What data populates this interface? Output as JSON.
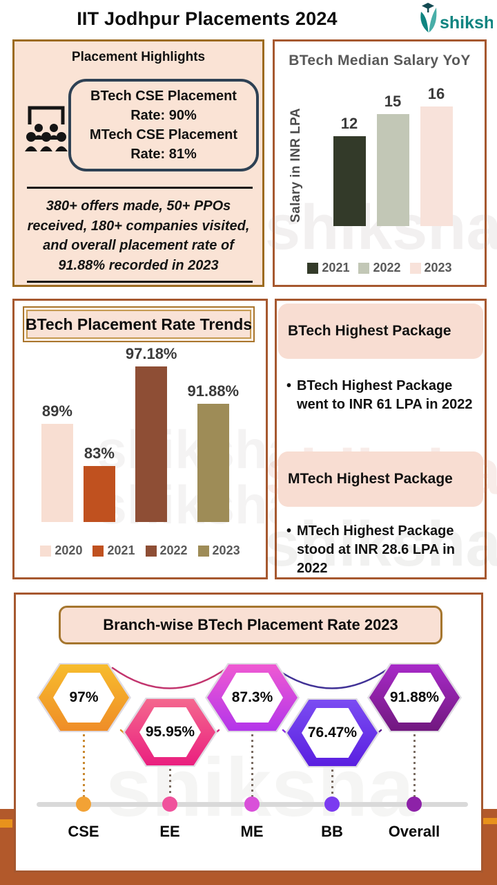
{
  "header": {
    "title": "IIT Jodhpur Placements 2024",
    "brand": "shiksha"
  },
  "watermark": "shiksha",
  "highlights": {
    "title": "Placement Highlights",
    "box_line1": "BTech CSE Placement Rate: 90%",
    "box_line2": "MTech CSE Placement Rate: 81%",
    "summary": "380+ offers made, 50+ PPOs received, 180+ companies visited, and overall placement rate of 91.88% recorded in 2023"
  },
  "packages": {
    "btech_header": "BTech Highest Package",
    "btech_bullet": "BTech Highest Package went to INR 61 LPA in 2022",
    "mtech_header": "MTech Highest Package",
    "mtech_bullet": "MTech Highest Package stood at INR 28.6 LPA in 2022"
  },
  "chart_data": [
    {
      "type": "bar",
      "title": "BTech Median Salary YoY",
      "xlabel": "",
      "ylabel": "Salary in INR LPA",
      "categories": [
        "2021",
        "2022",
        "2023"
      ],
      "values": [
        12,
        15,
        16
      ],
      "labels": [
        "12",
        "15",
        "16"
      ],
      "colors": [
        "#333a29",
        "#c2c7b6",
        "#f8e2da"
      ],
      "ylim": [
        0,
        18
      ],
      "grid": false,
      "legend_position": "bottom",
      "unit": "INR LPA"
    },
    {
      "type": "bar",
      "title": "BTech Placement Rate Trends",
      "xlabel": "",
      "ylabel": "",
      "categories": [
        "2020",
        "2021",
        "2022",
        "2023"
      ],
      "values": [
        89,
        83,
        97.18,
        91.88
      ],
      "labels": [
        "89%",
        "83%",
        "97.18%",
        "91.88%"
      ],
      "colors": [
        "#f8ded2",
        "#c0511f",
        "#8e4e35",
        "#9e8c57"
      ],
      "ylim": [
        75,
        100
      ],
      "grid": false,
      "legend_position": "bottom",
      "unit": "percent"
    },
    {
      "type": "hexagon-timeline",
      "title": "Branch-wise BTech Placement Rate 2023",
      "categories": [
        "CSE",
        "EE",
        "ME",
        "BB",
        "Overall"
      ],
      "values": [
        97,
        95.95,
        87.3,
        76.47,
        91.88
      ],
      "labels": [
        "97%",
        "95.95%",
        "87.3%",
        "76.47%",
        "91.88%"
      ],
      "hex_gradients": [
        [
          "#f7bc2d",
          "#ef8d27"
        ],
        [
          "#f4688e",
          "#ea1f7f"
        ],
        [
          "#ef5ad2",
          "#b335ea"
        ],
        [
          "#7b4cf2",
          "#5a1fe0"
        ],
        [
          "#a82ac8",
          "#71187f"
        ]
      ],
      "dot_colors": [
        "#f2a235",
        "#f0529c",
        "#d950d9",
        "#7b3bf0",
        "#8d22a8"
      ],
      "unit": "percent"
    }
  ]
}
